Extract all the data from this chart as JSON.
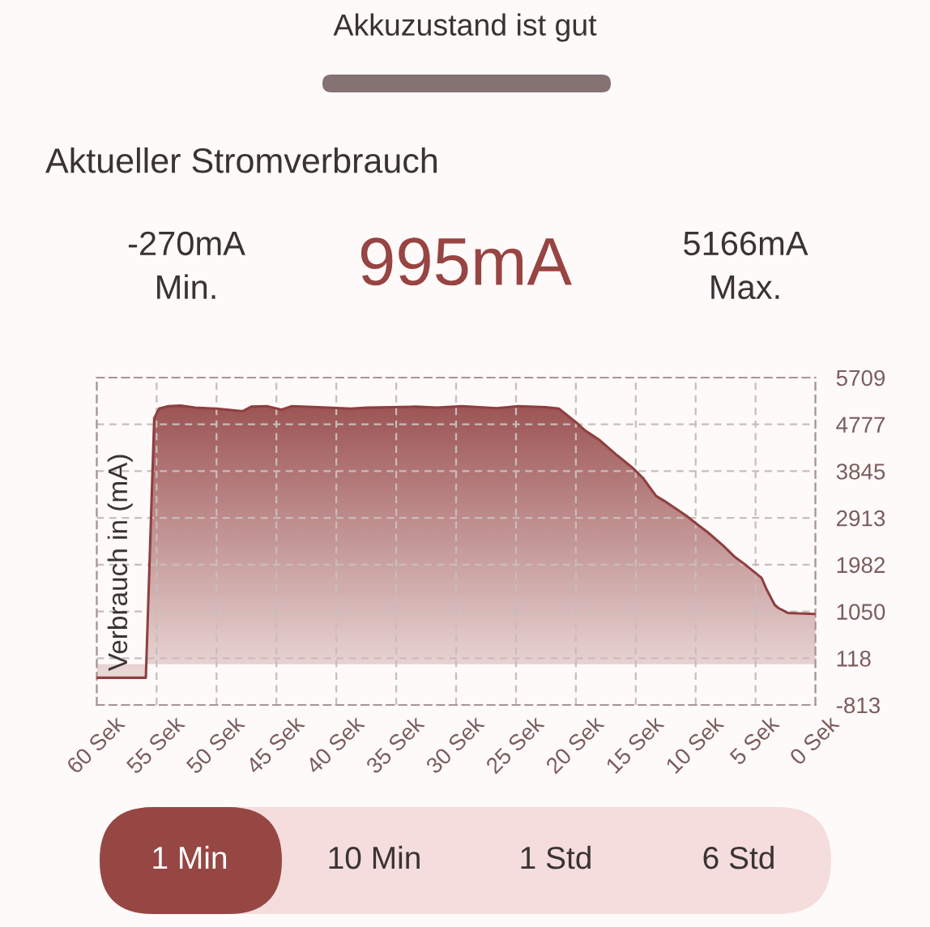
{
  "chart_data": {
    "type": "area",
    "title": "Aktueller Stromverbrauch",
    "ylabel": "Verbrauch in (mA)",
    "annotations": [
      "Akkuzustand ist gut",
      "-270mA",
      "Min.",
      "995mA",
      "5166mA",
      "Max.",
      "1 Min",
      "10 Min",
      "1 Std",
      "6 Std"
    ],
    "x": [
      60,
      55.9,
      55.2,
      54.8,
      54.0,
      53.0,
      51.8,
      50.0,
      47.8,
      47.1,
      45.8,
      44.6,
      43.7,
      41.5,
      38.8,
      37.4,
      33.4,
      31.6,
      29.5,
      26.6,
      24.8,
      22.5,
      21.4,
      19.8,
      19.2,
      18.0,
      16.7,
      15.3,
      14.4,
      13.3,
      12.6,
      10.8,
      9.9,
      9.0,
      7.7,
      6.8,
      5.9,
      4.5,
      4.1,
      3.4,
      3.1,
      2.3,
      0
    ],
    "series": [
      {
        "color": "#8f3f3f",
        "values": [
          -270,
          -270,
          4900,
          5090,
          5140,
          5150,
          5110,
          5090,
          5040,
          5130,
          5140,
          5070,
          5140,
          5120,
          5090,
          5110,
          5130,
          5110,
          5140,
          5100,
          5140,
          5120,
          5090,
          4780,
          4650,
          4460,
          4190,
          3920,
          3710,
          3350,
          3250,
          2960,
          2790,
          2630,
          2360,
          2150,
          1990,
          1720,
          1500,
          1180,
          1120,
          1020,
          1000
        ]
      }
    ],
    "xlim": [
      60,
      0
    ],
    "xticks": [
      {
        "value": 60,
        "label": "60 Sek"
      },
      {
        "value": 55,
        "label": "55 Sek"
      },
      {
        "value": 50,
        "label": "50 Sek"
      },
      {
        "value": 45,
        "label": "45 Sek"
      },
      {
        "value": 40,
        "label": "40 Sek"
      },
      {
        "value": 35,
        "label": "35 Sek"
      },
      {
        "value": 30,
        "label": "30 Sek"
      },
      {
        "value": 25,
        "label": "25 Sek"
      },
      {
        "value": 20,
        "label": "20 Sek"
      },
      {
        "value": 15,
        "label": "15 Sek"
      },
      {
        "value": 10,
        "label": "10 Sek"
      },
      {
        "value": 5,
        "label": "5 Sek"
      },
      {
        "value": 0,
        "label": "0 Sek"
      }
    ],
    "ylim": [
      -813,
      5709
    ],
    "yticks": [
      -813,
      118,
      1050,
      1982,
      2913,
      3845,
      4777,
      5709
    ],
    "grid": true
  }
}
